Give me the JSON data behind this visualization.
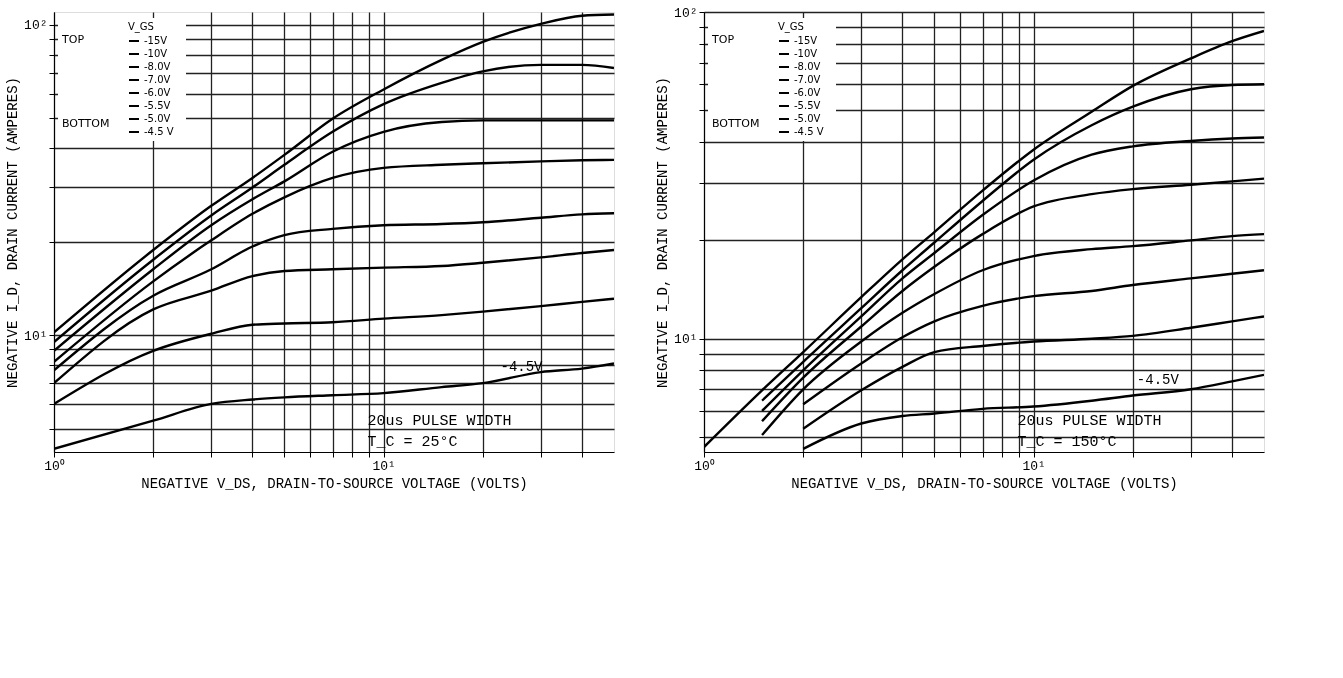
{
  "chart_data": [
    {
      "type": "line",
      "xlabel": "NEGATIVE V_DS, DRAIN-TO-SOURCE VOLTAGE (VOLTS)",
      "ylabel": "NEGATIVE I_D, DRAIN CURRENT (AMPERES)",
      "legend_title": "V_GS",
      "legend": "top left",
      "log": "xy",
      "grid": true,
      "xlim": [
        1,
        50
      ],
      "ylim": [
        4.2,
        110
      ],
      "xticks": [
        {
          "value": 1,
          "label": "10⁰"
        },
        {
          "value": 2,
          "label": null
        },
        {
          "value": 3,
          "label": null
        },
        {
          "value": 4,
          "label": null
        },
        {
          "value": 5,
          "label": null
        },
        {
          "value": 6,
          "label": null
        },
        {
          "value": 7,
          "label": null
        },
        {
          "value": 8,
          "label": null
        },
        {
          "value": 9,
          "label": null
        },
        {
          "value": 10,
          "label": "10¹"
        },
        {
          "value": 20,
          "label": null
        },
        {
          "value": 30,
          "label": null
        },
        {
          "value": 40,
          "label": null
        }
      ],
      "yticks": [
        {
          "value": 5,
          "label": null
        },
        {
          "value": 6,
          "label": null
        },
        {
          "value": 7,
          "label": null
        },
        {
          "value": 8,
          "label": null
        },
        {
          "value": 9,
          "label": null
        },
        {
          "value": 10,
          "label": "10¹"
        },
        {
          "value": 20,
          "label": null
        },
        {
          "value": 30,
          "label": null
        },
        {
          "value": 40,
          "label": null
        },
        {
          "value": 50,
          "label": null
        },
        {
          "value": 60,
          "label": null
        },
        {
          "value": 70,
          "label": null
        },
        {
          "value": 80,
          "label": null
        },
        {
          "value": 90,
          "label": null
        },
        {
          "value": 100,
          "label": "10²"
        }
      ],
      "x": [
        1,
        2,
        3,
        4,
        5,
        7,
        10,
        15,
        20,
        30,
        40,
        50
      ],
      "series": [
        {
          "name": "-15V",
          "color": "#000000",
          "values": [
            10.2,
            18.8,
            26.1,
            32.1,
            38.1,
            49.8,
            61.9,
            77.1,
            88.1,
            100.7,
            107,
            108
          ]
        },
        {
          "name": "-10V",
          "color": "#000000",
          "values": [
            9.5,
            17.5,
            24.3,
            29.9,
            35.4,
            45.2,
            55.5,
            65.0,
            70.8,
            74.3,
            74.3,
            72.6
          ]
        },
        {
          "name": "-8.0V",
          "color": "#000000",
          "values": [
            8.9,
            16.3,
            22.6,
            27.4,
            31.3,
            39.0,
            45.2,
            48.6,
            49.2,
            49.2,
            49.2,
            49.2
          ]
        },
        {
          "name": "-7.0V",
          "color": "#000000",
          "values": [
            8.2,
            14.9,
            20.2,
            24.6,
            27.8,
            32.1,
            34.6,
            35.4,
            35.8,
            36.3,
            36.6,
            36.7
          ]
        },
        {
          "name": "-6.0V",
          "color": "#000000",
          "values": [
            7.7,
            13.4,
            16.3,
            19.3,
            21.0,
            22.0,
            22.6,
            22.8,
            23.1,
            23.9,
            24.5,
            24.7
          ]
        },
        {
          "name": "-5.5V",
          "color": "#000000",
          "values": [
            7.0,
            12.1,
            13.9,
            15.5,
            16.1,
            16.3,
            16.5,
            16.7,
            17.1,
            17.8,
            18.4,
            18.8
          ]
        },
        {
          "name": "-5.0V",
          "color": "#000000",
          "values": [
            6.0,
            8.9,
            10.1,
            10.8,
            10.9,
            11.0,
            11.3,
            11.6,
            11.9,
            12.4,
            12.8,
            13.1
          ]
        },
        {
          "name": "-4.5 V",
          "color": "#000000",
          "values": [
            4.3,
            5.3,
            6.0,
            6.2,
            6.3,
            6.4,
            6.5,
            6.8,
            7.0,
            7.6,
            7.8,
            8.1
          ]
        }
      ],
      "annotations": [
        "TOP",
        "BOTTOM",
        "20us PULSE WIDTH",
        "T_C = 25°C",
        {
          "text": "-4.5V",
          "x": 22,
          "y": 7.0
        }
      ]
    },
    {
      "type": "line",
      "xlabel": "NEGATIVE V_DS, DRAIN-TO-SOURCE VOLTAGE (VOLTS)",
      "ylabel": "NEGATIVE I_D, DRAIN CURRENT (AMPERES)",
      "legend_title": "V_GS",
      "legend": "top left",
      "log": "xy",
      "grid": true,
      "xlim": [
        1,
        50
      ],
      "ylim": [
        4.5,
        100
      ],
      "xticks": [
        {
          "value": 1,
          "label": "10⁰"
        },
        {
          "value": 2,
          "label": null
        },
        {
          "value": 3,
          "label": null
        },
        {
          "value": 4,
          "label": null
        },
        {
          "value": 5,
          "label": null
        },
        {
          "value": 6,
          "label": null
        },
        {
          "value": 7,
          "label": null
        },
        {
          "value": 8,
          "label": null
        },
        {
          "value": 9,
          "label": null
        },
        {
          "value": 10,
          "label": "10¹"
        },
        {
          "value": 20,
          "label": null
        },
        {
          "value": 30,
          "label": null
        },
        {
          "value": 40,
          "label": null
        }
      ],
      "yticks": [
        {
          "value": 5,
          "label": null
        },
        {
          "value": 6,
          "label": null
        },
        {
          "value": 7,
          "label": null
        },
        {
          "value": 8,
          "label": null
        },
        {
          "value": 9,
          "label": null
        },
        {
          "value": 10,
          "label": "10¹"
        },
        {
          "value": 20,
          "label": null
        },
        {
          "value": 30,
          "label": null
        },
        {
          "value": 40,
          "label": null
        },
        {
          "value": 50,
          "label": null
        },
        {
          "value": 60,
          "label": null
        },
        {
          "value": 70,
          "label": null
        },
        {
          "value": 80,
          "label": null
        },
        {
          "value": 90,
          "label": null
        },
        {
          "value": 100,
          "label": "10²"
        }
      ],
      "x": [
        1,
        1.5,
        2,
        3,
        4,
        5,
        7,
        10,
        15,
        20,
        30,
        40,
        50
      ],
      "series": [
        {
          "name": "-15V",
          "color": "#000000",
          "values": [
            4.66,
            6.95,
            9.1,
            13.4,
            17.5,
            21.2,
            28.4,
            37.9,
            49.5,
            59.4,
            72.1,
            81.4,
            87.5
          ]
        },
        {
          "name": "-10V",
          "color": "#000000",
          "values": [
            null,
            6.46,
            8.5,
            12.4,
            16.2,
            19.7,
            26.4,
            35.3,
            45.0,
            51.3,
            58.0,
            59.8,
            60.1
          ]
        },
        {
          "name": "-8.0V",
          "color": "#000000",
          "values": [
            null,
            6.01,
            8.0,
            11.7,
            15.3,
            18.3,
            23.9,
            30.5,
            36.6,
            38.8,
            40.3,
            41.0,
            41.3
          ]
        },
        {
          "name": "-7.0V",
          "color": "#000000",
          "values": [
            null,
            5.59,
            7.6,
            10.9,
            14.0,
            16.6,
            20.9,
            25.4,
            27.7,
            28.7,
            29.6,
            30.3,
            30.9
          ]
        },
        {
          "name": "-6.0V",
          "color": "#000000",
          "values": [
            null,
            5.07,
            7.0,
            9.8,
            12.0,
            13.7,
            16.2,
            17.9,
            18.8,
            19.2,
            20.0,
            20.6,
            20.9
          ]
        },
        {
          "name": "-5.5V",
          "color": "#000000",
          "values": [
            null,
            null,
            6.3,
            8.4,
            10.1,
            11.3,
            12.6,
            13.5,
            14.0,
            14.6,
            15.3,
            15.8,
            16.2
          ]
        },
        {
          "name": "-5.0V",
          "color": "#000000",
          "values": [
            null,
            null,
            5.3,
            6.95,
            8.2,
            9.1,
            9.5,
            9.8,
            10.0,
            10.2,
            10.8,
            11.3,
            11.7
          ]
        },
        {
          "name": "-4.5 V",
          "color": "#000000",
          "values": [
            null,
            null,
            4.6,
            5.5,
            5.8,
            5.9,
            6.1,
            6.2,
            6.46,
            6.7,
            7.0,
            7.4,
            7.75
          ]
        }
      ],
      "annotations": [
        "TOP",
        "BOTTOM",
        "20us PULSE WIDTH",
        "T_C = 150°C",
        {
          "text": "-4.5V",
          "x": 20,
          "y": 6.7
        }
      ]
    }
  ]
}
